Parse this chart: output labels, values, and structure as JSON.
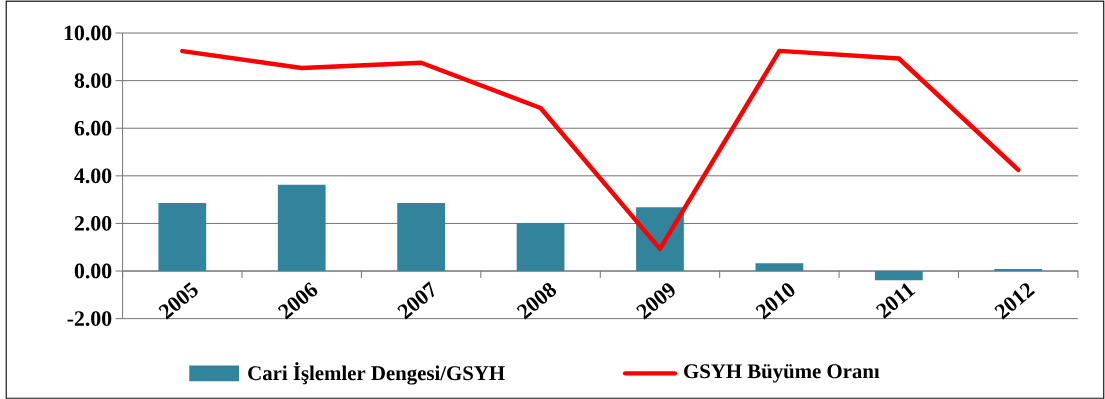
{
  "chart_data": {
    "type": "bar",
    "categories": [
      "2005",
      "2006",
      "2007",
      "2008",
      "2009",
      "2010",
      "2011",
      "2012"
    ],
    "series": [
      {
        "name": "Cari İşlemler Dengesi/GSYH",
        "color": "#31849b",
        "values": [
          2.86,
          3.62,
          2.86,
          2.02,
          2.68,
          0.33,
          -0.39,
          0.09
        ]
      },
      {
        "name": "GSYH Büyüme Oranı",
        "type": "line",
        "color": "#ff0000",
        "values": [
          9.24,
          8.53,
          8.75,
          6.85,
          0.93,
          9.25,
          8.93,
          4.25
        ]
      }
    ],
    "ylim": [
      -2,
      10
    ],
    "yticks": [
      {
        "value": -2,
        "label": "-2.00"
      },
      {
        "value": 0,
        "label": "0.00"
      },
      {
        "value": 2,
        "label": "2.00"
      },
      {
        "value": 4,
        "label": "4.00"
      },
      {
        "value": 6,
        "label": "6.00"
      },
      {
        "value": 8,
        "label": "8.00"
      },
      {
        "value": 10,
        "label": "10.00"
      }
    ],
    "grid": "y",
    "legend": "bottom",
    "marker": "none",
    "line_style": "solid"
  }
}
